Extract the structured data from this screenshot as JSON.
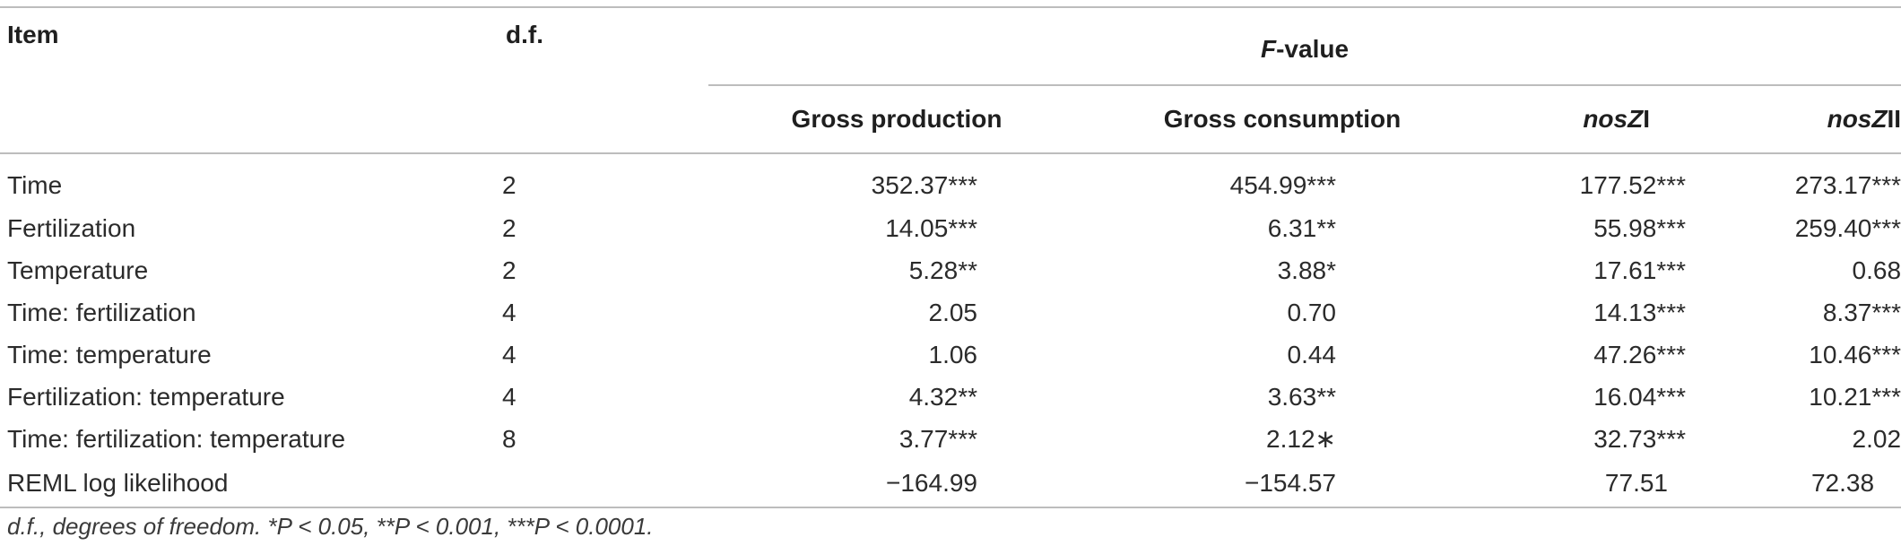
{
  "headers": {
    "item": "Item",
    "df": "d.f.",
    "fvalue_italic": "F",
    "fvalue_rest": "-value",
    "gross_production": "Gross production",
    "gross_consumption": "Gross consumption",
    "nosZI_italic": "nosZ",
    "nosZI_rest": "I",
    "nosZII_italic": "nosZ",
    "nosZII_rest": "II"
  },
  "rows": [
    {
      "item": "Time",
      "df": "2",
      "gp": "352.37***",
      "gc": "454.99***",
      "n1": "177.52***",
      "n2": "273.17***"
    },
    {
      "item": "Fertilization",
      "df": "2",
      "gp": "14.05***",
      "gc": "6.31**",
      "n1": "55.98***",
      "n2": "259.40***"
    },
    {
      "item": "Temperature",
      "df": "2",
      "gp": "5.28**",
      "gc": "3.88*",
      "n1": "17.61***",
      "n2": "0.68"
    },
    {
      "item": "Time: fertilization",
      "df": "4",
      "gp": "2.05",
      "gc": "0.70",
      "n1": "14.13***",
      "n2": "8.37***"
    },
    {
      "item": "Time: temperature",
      "df": "4",
      "gp": "1.06",
      "gc": "0.44",
      "n1": "47.26***",
      "n2": "10.46***"
    },
    {
      "item": "Fertilization: temperature",
      "df": "4",
      "gp": "4.32**",
      "gc": "3.63**",
      "n1": "16.04***",
      "n2": "10.21***"
    },
    {
      "item": "Time: fertilization: temperature",
      "df": "8",
      "gp": "3.77***",
      "gc": "2.12∗",
      "n1": "32.73***",
      "n2": "2.02"
    },
    {
      "item": "REML log likelihood",
      "df": "",
      "gp": "−164.99",
      "gc": "−154.57",
      "n1": "77.51",
      "n2": "72.38"
    }
  ],
  "footnote": "d.f., degrees of freedom. *P < 0.05, **P < 0.001, ***P < 0.0001."
}
